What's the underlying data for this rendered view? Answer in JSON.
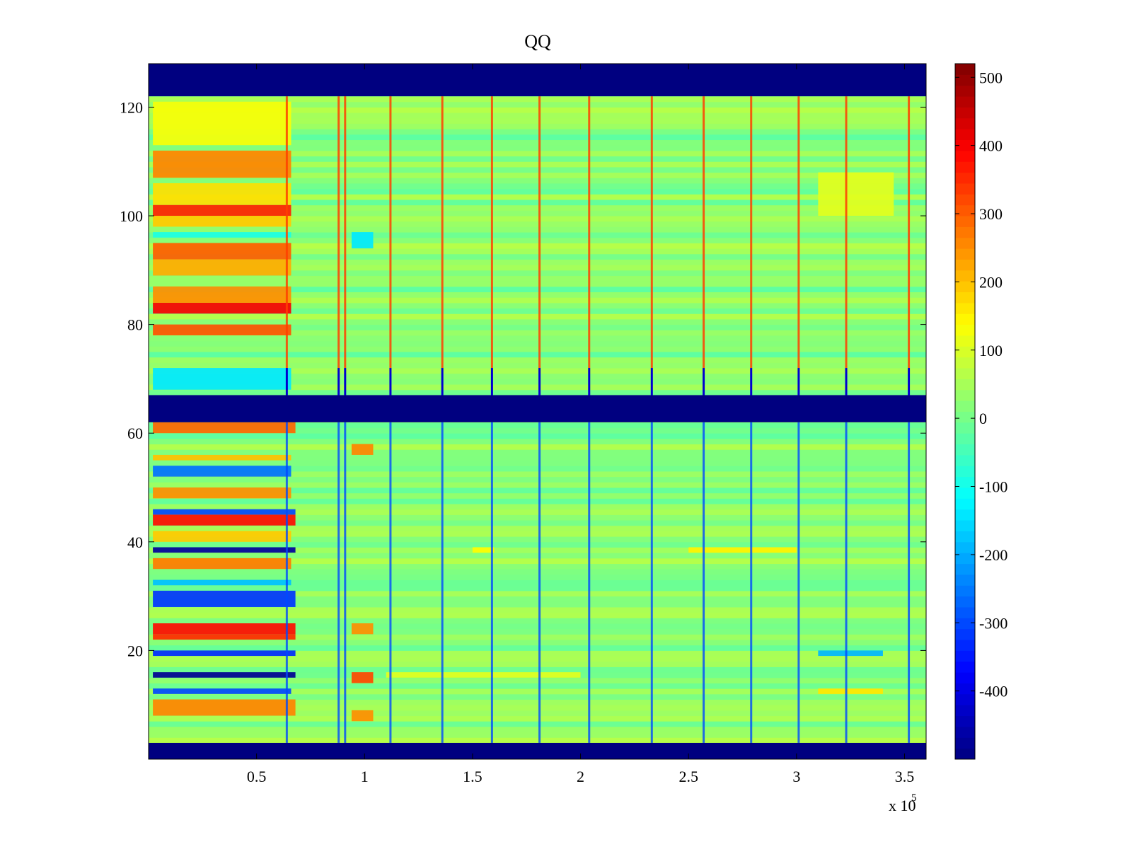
{
  "chart_data": {
    "type": "heatmap",
    "title": "QQ",
    "xlabel": "",
    "ylabel": "",
    "xlim": [
      0,
      360000
    ],
    "ylim": [
      0,
      128
    ],
    "x_tick_values": [
      50000,
      100000,
      150000,
      200000,
      250000,
      300000,
      350000
    ],
    "x_tick_labels": [
      "0.5",
      "1",
      "1.5",
      "2",
      "2.5",
      "3",
      "3.5"
    ],
    "x_exponent_label": "x 10",
    "x_exponent_power": "5",
    "y_ticks": [
      20,
      40,
      60,
      80,
      100,
      120
    ],
    "colorbar": {
      "colormap": "jet",
      "range": [
        -500,
        520
      ],
      "ticks": [
        -400,
        -300,
        -200,
        -100,
        0,
        100,
        200,
        300,
        400,
        500
      ]
    },
    "masked_rows": [
      [
        0,
        3
      ],
      [
        62,
        67
      ],
      [
        122,
        128
      ]
    ],
    "event_columns_x": [
      64000,
      88000,
      91000,
      112000,
      136000,
      159000,
      181000,
      204000,
      233000,
      257000,
      279000,
      301000,
      323000,
      352000
    ],
    "row_features": [
      {
        "rows": [
          8,
          11
        ],
        "x_range": [
          2000,
          68000
        ],
        "value": 260
      },
      {
        "rows": [
          12,
          13
        ],
        "x_range": [
          2000,
          66000
        ],
        "value": -300
      },
      {
        "rows": [
          15,
          16
        ],
        "x_range": [
          2000,
          68000
        ],
        "value": -480
      },
      {
        "rows": [
          19,
          20
        ],
        "x_range": [
          2000,
          68000
        ],
        "value": -330
      },
      {
        "rows": [
          22,
          23
        ],
        "x_range": [
          2000,
          68000
        ],
        "value": 350
      },
      {
        "rows": [
          23,
          25
        ],
        "x_range": [
          2000,
          68000
        ],
        "value": 380
      },
      {
        "rows": [
          28,
          31
        ],
        "x_range": [
          2000,
          68000
        ],
        "value": -320
      },
      {
        "rows": [
          32,
          33
        ],
        "x_range": [
          2000,
          66000
        ],
        "value": -180
      },
      {
        "rows": [
          35,
          37
        ],
        "x_range": [
          2000,
          66000
        ],
        "value": 270
      },
      {
        "rows": [
          38,
          39
        ],
        "x_range": [
          2000,
          68000
        ],
        "value": -470
      },
      {
        "rows": [
          40,
          42
        ],
        "x_range": [
          2000,
          66000
        ],
        "value": 190
      },
      {
        "rows": [
          43,
          45
        ],
        "x_range": [
          2000,
          68000
        ],
        "value": 380
      },
      {
        "rows": [
          45,
          46
        ],
        "x_range": [
          2000,
          68000
        ],
        "value": -300
      },
      {
        "rows": [
          48,
          50
        ],
        "x_range": [
          2000,
          66000
        ],
        "value": 250
      },
      {
        "rows": [
          52,
          54
        ],
        "x_range": [
          2000,
          66000
        ],
        "value": -260
      },
      {
        "rows": [
          55,
          56
        ],
        "x_range": [
          2000,
          66000
        ],
        "value": 200
      },
      {
        "rows": [
          60,
          62
        ],
        "x_range": [
          2000,
          68000
        ],
        "value": 290
      },
      {
        "rows": [
          78,
          80
        ],
        "x_range": [
          2000,
          66000
        ],
        "value": 310
      },
      {
        "rows": [
          82,
          84
        ],
        "x_range": [
          2000,
          66000
        ],
        "value": 400
      },
      {
        "rows": [
          84,
          87
        ],
        "x_range": [
          2000,
          66000
        ],
        "value": 250
      },
      {
        "rows": [
          89,
          92
        ],
        "x_range": [
          2000,
          66000
        ],
        "value": 220
      },
      {
        "rows": [
          92,
          95
        ],
        "x_range": [
          2000,
          66000
        ],
        "value": 300
      },
      {
        "rows": [
          96,
          97
        ],
        "x_range": [
          2000,
          66000
        ],
        "value": -90
      },
      {
        "rows": [
          98,
          100
        ],
        "x_range": [
          2000,
          66000
        ],
        "value": 190
      },
      {
        "rows": [
          100,
          102
        ],
        "x_range": [
          2000,
          66000
        ],
        "value": 360
      },
      {
        "rows": [
          102,
          106
        ],
        "x_range": [
          2000,
          66000
        ],
        "value": 170
      },
      {
        "rows": [
          107,
          112
        ],
        "x_range": [
          2000,
          66000
        ],
        "value": 260
      },
      {
        "rows": [
          113,
          121
        ],
        "x_range": [
          2000,
          66000
        ],
        "value": 130
      },
      {
        "rows": [
          68,
          72
        ],
        "x_range": [
          2000,
          66000
        ],
        "value": -140
      },
      {
        "rows": [
          38,
          39
        ],
        "x_range": [
          250000,
          300000
        ],
        "value": 150
      },
      {
        "rows": [
          38,
          39
        ],
        "x_range": [
          150000,
          160000
        ],
        "value": 140
      },
      {
        "rows": [
          19,
          20
        ],
        "x_range": [
          310000,
          340000
        ],
        "value": -190
      },
      {
        "rows": [
          15,
          16
        ],
        "x_range": [
          110000,
          200000
        ],
        "value": 110
      },
      {
        "rows": [
          12,
          13
        ],
        "x_range": [
          310000,
          340000
        ],
        "value": 160
      },
      {
        "rows": [
          94,
          97
        ],
        "x_range": [
          94000,
          104000
        ],
        "value": -140
      },
      {
        "rows": [
          56,
          58
        ],
        "x_range": [
          94000,
          104000
        ],
        "value": 260
      },
      {
        "rows": [
          23,
          25
        ],
        "x_range": [
          94000,
          104000
        ],
        "value": 250
      },
      {
        "rows": [
          7,
          9
        ],
        "x_range": [
          94000,
          104000
        ],
        "value": 250
      },
      {
        "rows": [
          14,
          16
        ],
        "x_range": [
          94000,
          104000
        ],
        "value": 320
      },
      {
        "rows": [
          100,
          108
        ],
        "x_range": [
          310000,
          345000
        ],
        "value": 110
      }
    ],
    "background_value": 20
  }
}
